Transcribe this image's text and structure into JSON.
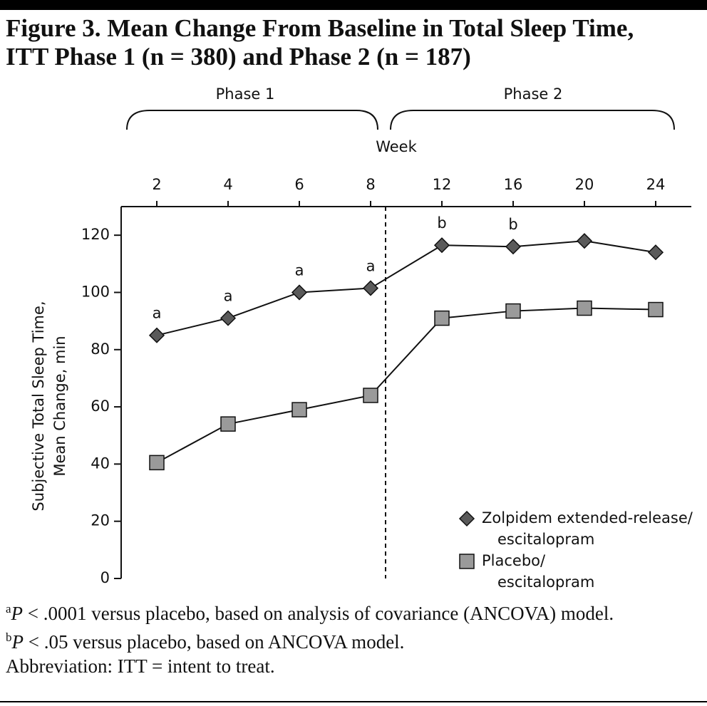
{
  "chart_data": {
    "type": "line",
    "title": [
      "Figure 3. Mean Change From Baseline in Total Sleep Time,",
      "ITT Phase 1 (n = 380) and Phase 2 (n = 187)"
    ],
    "phases": [
      "Phase 1",
      "Phase 2"
    ],
    "x_label": "Week",
    "y_label": [
      "Subjective Total Sleep Time,",
      "Mean Change, min"
    ],
    "categories": [
      "2",
      "4",
      "6",
      "8",
      "12",
      "16",
      "20",
      "24"
    ],
    "series": [
      {
        "name": "Zolpidem extended-release/escitalopram",
        "marker": "diamond",
        "color": "#5a5a5a",
        "values": [
          85,
          91,
          100,
          101.5,
          116.5,
          116,
          118,
          114
        ],
        "point_labels": [
          "a",
          "a",
          "a",
          "a",
          "b",
          "b",
          null,
          null
        ]
      },
      {
        "name": "Placebo/escitalopram",
        "marker": "square",
        "color": "#9a9a9a",
        "values": [
          40.5,
          54,
          59,
          64,
          91,
          93.5,
          94.5,
          94
        ]
      }
    ],
    "ylim": [
      0,
      130
    ],
    "yticks": [
      0,
      20,
      40,
      60,
      80,
      100,
      120
    ],
    "grid": false,
    "legend": "lower right",
    "footnotes": [
      {
        "marker": "a",
        "italic": "P",
        "text": " < .0001 versus placebo, based on analysis of covariance (ANCOVA) model."
      },
      {
        "marker": "b",
        "italic": "P",
        "text": " < .05 versus placebo, based on ANCOVA model."
      },
      {
        "text": "Abbreviation: ITT = intent to treat."
      }
    ]
  }
}
